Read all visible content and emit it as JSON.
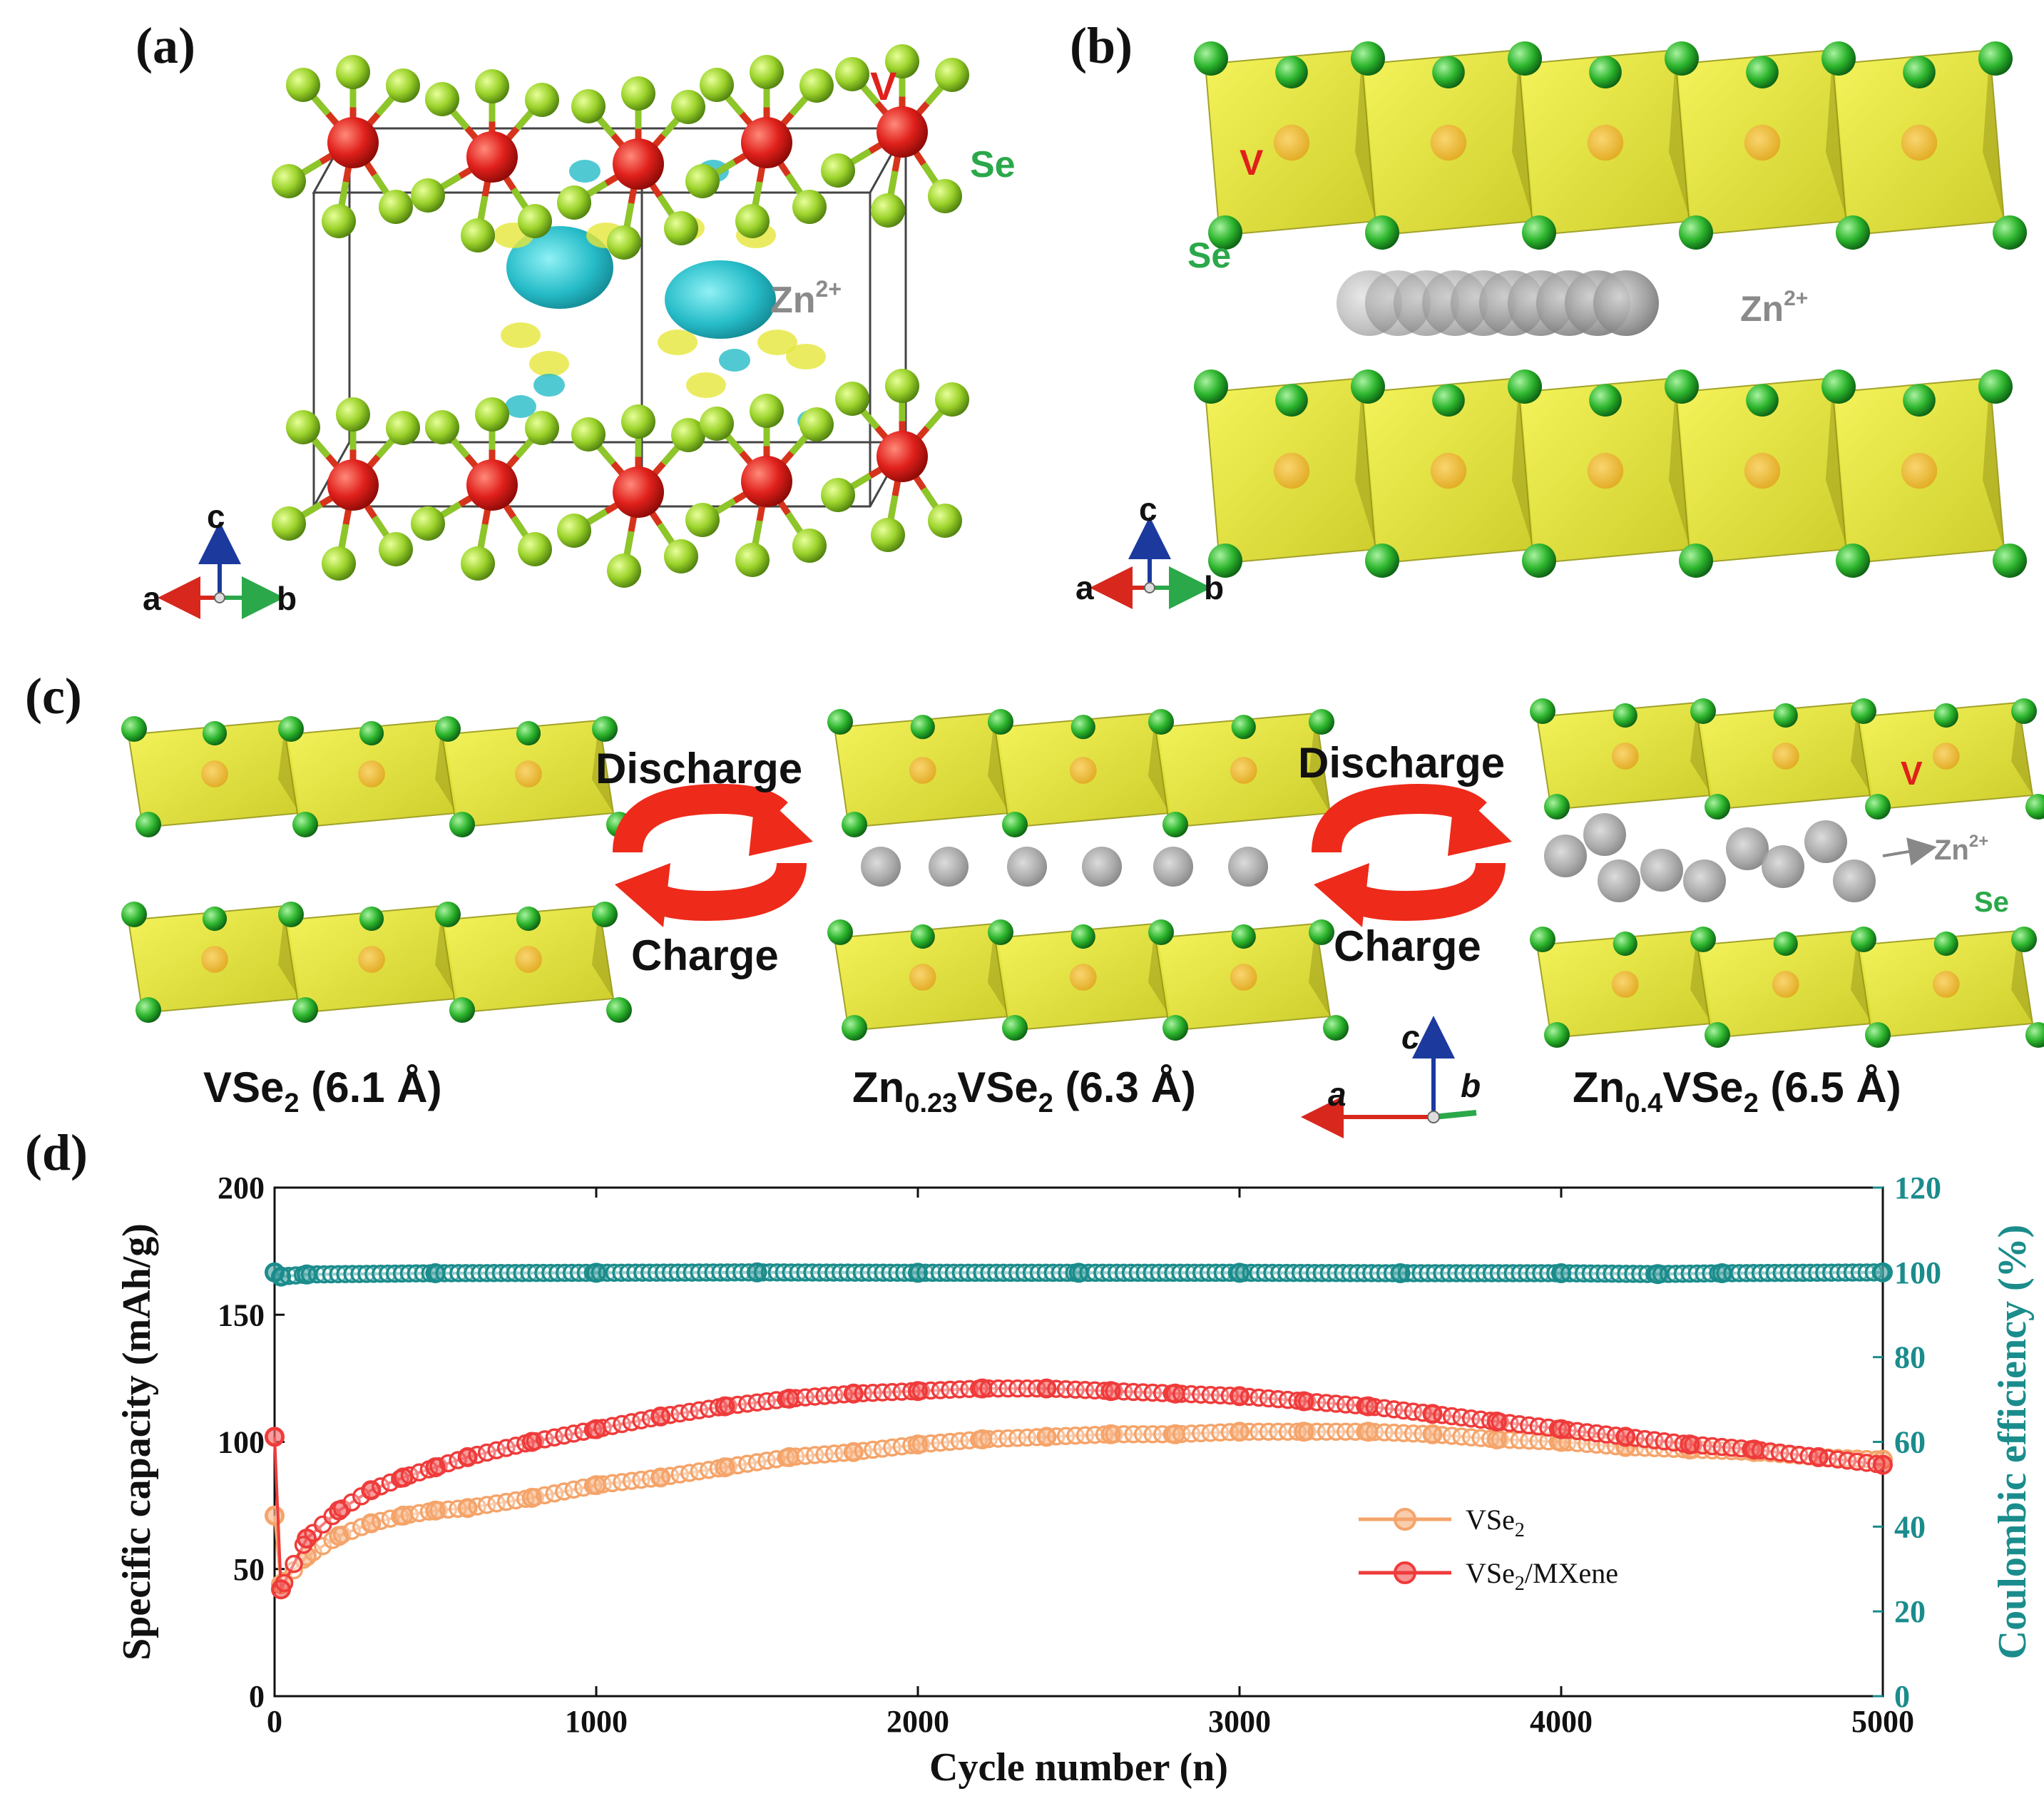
{
  "panels": {
    "a": {
      "label": "(a)",
      "atom_v": "V",
      "atom_se": "Se",
      "ion": "Zn",
      "ion_sup": "2+",
      "axes": {
        "c": "c",
        "a": "a",
        "b": "b"
      }
    },
    "b": {
      "label": "(b)",
      "atom_v": "V",
      "atom_se": "Se",
      "ion": "Zn",
      "ion_sup": "2+",
      "axes": {
        "c": "c",
        "a": "a",
        "b": "b"
      }
    },
    "c": {
      "label": "(c)",
      "discharge_label": "Discharge",
      "charge_label": "Charge",
      "atom_v": "V",
      "atom_se": "Se",
      "ion": "Zn",
      "ion_sup": "2+",
      "structures": [
        {
          "pre": "VSe",
          "sub1": "",
          "mid": "",
          "sub2": "2",
          "post": " (6.1 Å)"
        },
        {
          "pre": "Zn",
          "sub1": "0.23",
          "mid": "VSe",
          "sub2": "2",
          "post": " (6.3 Å)"
        },
        {
          "pre": "Zn",
          "sub1": "0.4",
          "mid": "VSe",
          "sub2": "2",
          "post": " (6.5 Å)"
        }
      ],
      "axes": {
        "c": "c",
        "a": "a",
        "b": "b"
      }
    },
    "d": {
      "label": "(d)"
    }
  },
  "colors": {
    "vse2": "#f5a46a",
    "vse2_mxene": "#ef3b3b",
    "ce": "#1b8c8c",
    "v_atom": "#e0201b",
    "se_atom": "#2db52d",
    "se_atom_a": "#9bd22a",
    "octa": "#e2e226",
    "zn": "#9a9a9a",
    "arrow": "#ee2a1a",
    "isosurface_cyan": "#26bcc8"
  },
  "chart_data": {
    "type": "line",
    "xlabel": "Cycle number (n)",
    "ylabel": "Specific capacity (mAh/g)",
    "y2label": "Coulombic efficiency (%)",
    "xlim": [
      0,
      5000
    ],
    "ylim": [
      0,
      200
    ],
    "y2lim": [
      0,
      120
    ],
    "xticks": [
      "0",
      "1000",
      "2000",
      "3000",
      "4000",
      "5000"
    ],
    "yticks": [
      "0",
      "50",
      "100",
      "150",
      "200"
    ],
    "y2ticks": [
      "0",
      "20",
      "40",
      "60",
      "80",
      "100",
      "120"
    ],
    "legend_position": "center-right",
    "series": [
      {
        "name": "VSe2",
        "legend_main": "VSe",
        "legend_sub": "2",
        "legend_rest": "",
        "axis": "left",
        "x": [
          0,
          20,
          100,
          200,
          300,
          400,
          500,
          600,
          800,
          1000,
          1200,
          1400,
          1600,
          1800,
          2000,
          2200,
          2400,
          2600,
          2800,
          3000,
          3200,
          3400,
          3600,
          3800,
          4000,
          4200,
          4400,
          4600,
          4800,
          5000
        ],
        "values": [
          71,
          44,
          55,
          63,
          68,
          71,
          73,
          74,
          78,
          83,
          86,
          90,
          94,
          96,
          99,
          101,
          102,
          103,
          103,
          104,
          104,
          104,
          103,
          101,
          100,
          98,
          97,
          96,
          94,
          93
        ]
      },
      {
        "name": "VSe2/MXene",
        "legend_main": "VSe",
        "legend_sub": "2",
        "legend_rest": "/MXene",
        "axis": "left",
        "x": [
          0,
          20,
          100,
          200,
          300,
          400,
          500,
          600,
          800,
          1000,
          1200,
          1400,
          1600,
          1800,
          2000,
          2200,
          2400,
          2600,
          2800,
          3000,
          3200,
          3400,
          3600,
          3800,
          4000,
          4200,
          4400,
          4600,
          4800,
          5000
        ],
        "values": [
          102,
          42,
          62,
          73,
          81,
          86,
          90,
          94,
          100,
          105,
          110,
          114,
          117,
          119,
          120,
          121,
          121,
          120,
          119,
          118,
          116,
          114,
          111,
          108,
          105,
          102,
          99,
          97,
          94,
          91
        ]
      },
      {
        "name": "Coulombic efficiency",
        "axis": "right",
        "x": [
          0,
          20,
          100,
          500,
          1000,
          1500,
          2000,
          2500,
          3000,
          3500,
          4000,
          4300,
          4500,
          5000
        ],
        "values": [
          100,
          99,
          99.5,
          99.8,
          99.9,
          100,
          99.9,
          99.9,
          99.9,
          99.8,
          99.8,
          99.6,
          99.8,
          100
        ]
      }
    ]
  }
}
